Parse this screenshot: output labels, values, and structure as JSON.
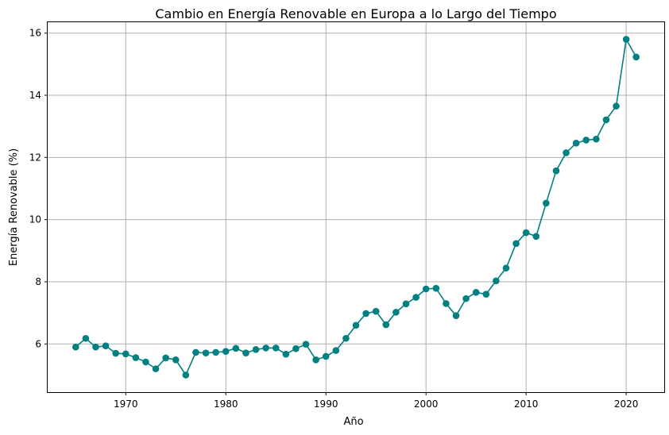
{
  "chart_data": {
    "type": "line",
    "title": "Cambio en Energía Renovable en Europa a lo Largo del Tiempo",
    "xlabel": "Año",
    "ylabel": "Energía Renovable (%)",
    "xlim": [
      1962.2,
      2023.8
    ],
    "ylim": [
      4.45,
      16.35
    ],
    "xticks": [
      1970,
      1980,
      1990,
      2000,
      2010,
      2020
    ],
    "yticks": [
      6,
      8,
      10,
      12,
      14,
      16
    ],
    "grid": true,
    "marker": "circle",
    "color": "#008080",
    "x": [
      1965,
      1966,
      1967,
      1968,
      1969,
      1970,
      1971,
      1972,
      1973,
      1974,
      1975,
      1976,
      1977,
      1978,
      1979,
      1980,
      1981,
      1982,
      1983,
      1984,
      1985,
      1986,
      1987,
      1988,
      1989,
      1990,
      1991,
      1992,
      1993,
      1994,
      1995,
      1996,
      1997,
      1998,
      1999,
      2000,
      2001,
      2002,
      2003,
      2004,
      2005,
      2006,
      2007,
      2008,
      2009,
      2010,
      2011,
      2012,
      2013,
      2014,
      2015,
      2016,
      2017,
      2018,
      2019,
      2020,
      2021
    ],
    "series": [
      {
        "values": [
          5.9,
          6.18,
          5.9,
          5.94,
          5.7,
          5.68,
          5.56,
          5.42,
          5.2,
          5.55,
          5.49,
          5.0,
          5.73,
          5.71,
          5.73,
          5.76,
          5.86,
          5.71,
          5.82,
          5.87,
          5.87,
          5.67,
          5.85,
          5.99,
          5.49,
          5.6,
          5.79,
          6.18,
          6.6,
          6.98,
          7.05,
          6.62,
          7.02,
          7.29,
          7.5,
          7.77,
          7.79,
          7.3,
          6.91,
          7.46,
          7.66,
          7.6,
          8.03,
          8.44,
          9.23,
          9.58,
          9.46,
          10.53,
          11.57,
          12.15,
          12.46,
          12.56,
          12.59,
          13.21,
          13.65,
          15.8,
          15.23
        ]
      }
    ]
  }
}
